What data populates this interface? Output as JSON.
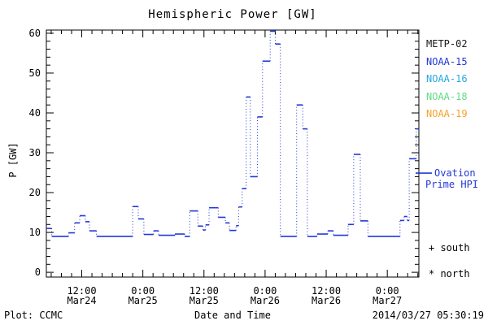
{
  "title": "Hemispheric Power [GW]",
  "y_axis": {
    "label": "P [GW]",
    "ticks": [
      0,
      10,
      20,
      30,
      40,
      50,
      60
    ],
    "minor_step": 2,
    "min": -1.2,
    "max": 60.8
  },
  "x_axis": {
    "label": "Date and Time",
    "min_hour": 5.05,
    "max_hour": 78.2,
    "minor_step_hours": 2,
    "major_ticks": [
      {
        "hour": 12,
        "time": "12:00",
        "date": "Mar24"
      },
      {
        "hour": 24,
        "time": "0:00",
        "date": "Mar25"
      },
      {
        "hour": 36,
        "time": "12:00",
        "date": "Mar25"
      },
      {
        "hour": 48,
        "time": "0:00",
        "date": "Mar26"
      },
      {
        "hour": 60,
        "time": "12:00",
        "date": "Mar26"
      },
      {
        "hour": 72,
        "time": "0:00",
        "date": "Mar27"
      }
    ]
  },
  "legend": {
    "items": [
      {
        "label": "METP-02",
        "color": "#1a1a1a"
      },
      {
        "label": "NOAA-15",
        "color": "#2238d8"
      },
      {
        "label": "NOAA-16",
        "color": "#29a8e0"
      },
      {
        "label": "NOAA-18",
        "color": "#63da84"
      },
      {
        "label": "NOAA-19",
        "color": "#f5a32a"
      }
    ]
  },
  "annotations": {
    "ovation_line1": "Ovation",
    "ovation_line2": "Prime HPI",
    "south_marker": "+ south",
    "north_marker": "* north"
  },
  "footer": {
    "left": "Plot: CCMC",
    "right": "2014/03/27 05:30:19"
  },
  "chart_data": {
    "type": "line",
    "subtype": "step",
    "title": "Hemispheric Power [GW]",
    "xlabel": "Date and Time",
    "ylabel": "P [GW]",
    "x_unit": "hours since 2014-03-24 00:00 UT",
    "y_unit": "GW",
    "ylim": [
      -1.2,
      60.8
    ],
    "xlim_hours": [
      5.05,
      78.2
    ],
    "grid": false,
    "legend_position": "right-outside",
    "series_name": "NOAA-15 hemispheric power",
    "series_color": "#2238d8",
    "ovation_prime_hpi_gw": 24.9,
    "end_hour": 78.2,
    "steps": [
      [
        5.0,
        11.0
      ],
      [
        6.1,
        9.0
      ],
      [
        9.4,
        9.9
      ],
      [
        10.6,
        12.4
      ],
      [
        11.6,
        14.2
      ],
      [
        12.7,
        12.7
      ],
      [
        13.5,
        10.4
      ],
      [
        14.9,
        9.0
      ],
      [
        22.0,
        16.5
      ],
      [
        23.1,
        13.4
      ],
      [
        24.2,
        9.5
      ],
      [
        26.1,
        10.4
      ],
      [
        27.1,
        9.3
      ],
      [
        30.3,
        9.6
      ],
      [
        32.2,
        9.0
      ],
      [
        33.2,
        15.4
      ],
      [
        34.8,
        11.6
      ],
      [
        35.8,
        10.6
      ],
      [
        36.3,
        11.9
      ],
      [
        37.0,
        16.2
      ],
      [
        38.8,
        13.8
      ],
      [
        40.2,
        12.4
      ],
      [
        41.0,
        10.5
      ],
      [
        42.3,
        11.7
      ],
      [
        42.8,
        16.4
      ],
      [
        43.5,
        21.0
      ],
      [
        44.3,
        44.0
      ],
      [
        45.1,
        24.0
      ],
      [
        46.5,
        39.0
      ],
      [
        47.5,
        53.0
      ],
      [
        49.0,
        60.5
      ],
      [
        50.0,
        57.3
      ],
      [
        51.0,
        9.0
      ],
      [
        54.2,
        42.0
      ],
      [
        55.4,
        36.0
      ],
      [
        56.3,
        9.0
      ],
      [
        58.2,
        9.6
      ],
      [
        60.3,
        10.4
      ],
      [
        61.4,
        9.3
      ],
      [
        64.3,
        12.0
      ],
      [
        65.4,
        29.6
      ],
      [
        66.7,
        12.9
      ],
      [
        68.2,
        9.0
      ],
      [
        74.5,
        13.0
      ],
      [
        75.3,
        14.0
      ],
      [
        75.9,
        13.0
      ],
      [
        76.3,
        28.5
      ],
      [
        77.7,
        36.0
      ]
    ]
  }
}
